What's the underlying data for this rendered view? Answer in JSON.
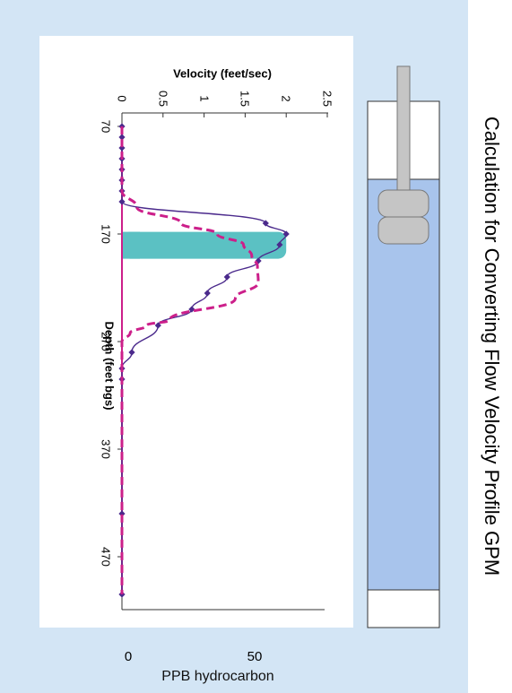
{
  "title": "Calculation for Converting Flow Velocity Profile GPM",
  "chart_data": {
    "type": "line",
    "orientation": "rotated-90",
    "x_axis": {
      "label": "Depth (feet bgs)",
      "ticks": [
        70,
        170,
        270,
        370,
        470
      ],
      "range": [
        70,
        505
      ]
    },
    "y_axis_top": {
      "label": "Velocity (feet/sec)",
      "ticks": [
        "0",
        "0.5",
        "1",
        "1.5",
        "2",
        "2.5"
      ],
      "range": [
        0,
        2.5
      ]
    },
    "y_axis_bottom": {
      "label": "PPB hydrocarbon",
      "ticks": [
        "0",
        "50"
      ]
    },
    "series": [
      {
        "style": "solid line with diamond markers",
        "color": "#4b2a8c",
        "x": [
          70,
          80,
          90,
          100,
          110,
          120,
          130,
          140,
          160,
          170,
          180,
          195,
          210,
          225,
          240,
          255,
          280,
          295,
          305,
          430,
          505
        ],
        "y": [
          0,
          0,
          0,
          0,
          0,
          0,
          0,
          0,
          1.75,
          2.0,
          1.92,
          1.66,
          1.28,
          1.04,
          0.85,
          0.44,
          0.12,
          0,
          0,
          0,
          0
        ]
      },
      {
        "style": "dashed line",
        "color": "#cc1f8a",
        "x": [
          70,
          130,
          145,
          160,
          170,
          180,
          190,
          200,
          215,
          230,
          250,
          255,
          262,
          270,
          505
        ],
        "y": [
          0,
          0,
          0.18,
          0.72,
          1.16,
          1.48,
          1.58,
          1.65,
          1.66,
          1.38,
          0.58,
          0.3,
          0.1,
          0,
          0
        ]
      }
    ],
    "band": {
      "from": 168,
      "to": 193,
      "value": 2.0,
      "color": "#5bc1c3"
    },
    "pink_baseline_color": "#cc1f8a"
  },
  "labels": {
    "zero": "0",
    "fifty": "50",
    "ppb": "PPB hydrocarbon"
  },
  "well": {
    "water_color": "#a8c4ec",
    "casing_color": "#c5c5c5"
  }
}
